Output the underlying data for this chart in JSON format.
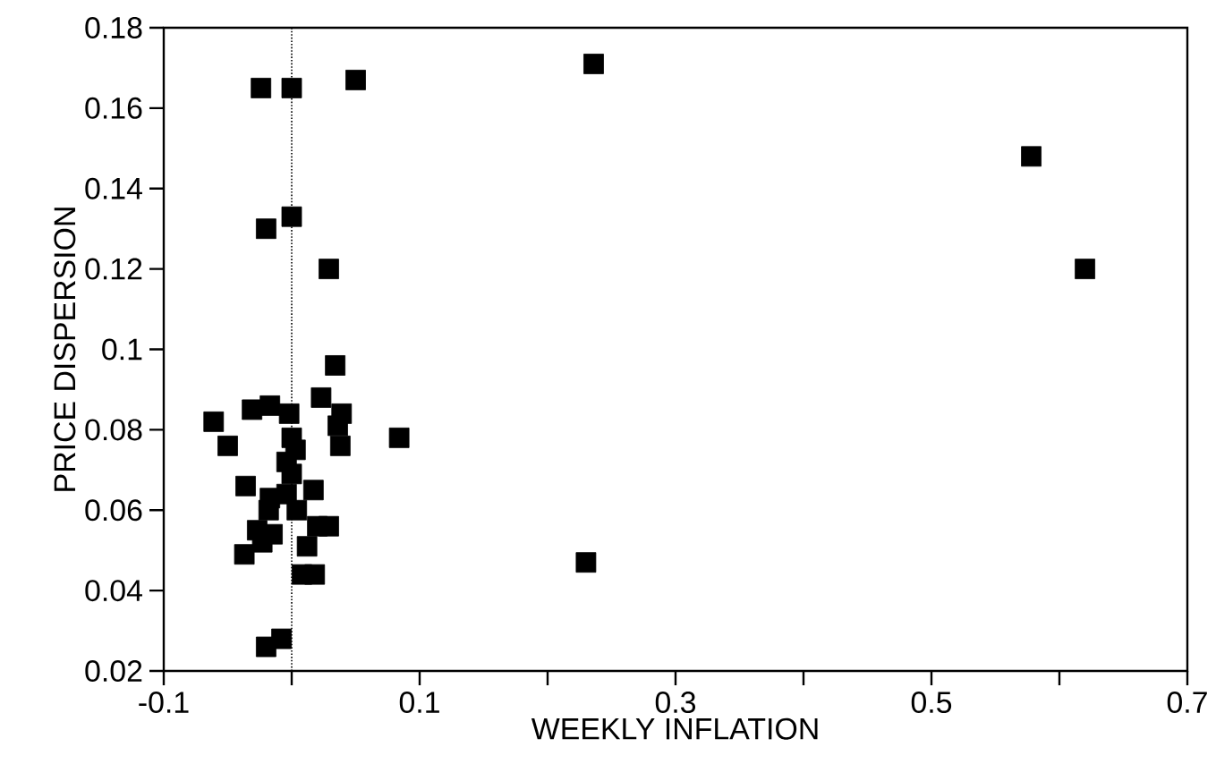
{
  "chart_data": {
    "type": "scatter",
    "xlabel": "WEEKLY INFLATION",
    "ylabel": "PRICE DISPERSION",
    "x": [
      0.023,
      -0.031,
      -0.017,
      -0.002,
      -0.061,
      0.039,
      0.036,
      0.0,
      -0.05,
      0.038,
      0.084,
      0.003,
      -0.004,
      0.0,
      -0.036,
      0.017,
      -0.004,
      -0.017,
      -0.018,
      0.004,
      0.02,
      0.029,
      -0.027,
      -0.015,
      -0.023,
      -0.037,
      0.012,
      0.008,
      0.018,
      -0.008,
      -0.02,
      -0.024,
      0.0,
      0.05,
      0.236,
      0.0,
      -0.02,
      0.029,
      0.578,
      0.62,
      0.23,
      0.034
    ],
    "values": [
      0.088,
      0.085,
      0.086,
      0.084,
      0.082,
      0.084,
      0.081,
      0.078,
      0.076,
      0.076,
      0.078,
      0.075,
      0.072,
      0.069,
      0.066,
      0.065,
      0.064,
      0.063,
      0.06,
      0.06,
      0.056,
      0.056,
      0.055,
      0.054,
      0.052,
      0.049,
      0.051,
      0.044,
      0.044,
      0.028,
      0.026,
      0.165,
      0.165,
      0.167,
      0.171,
      0.133,
      0.13,
      0.12,
      0.148,
      0.12,
      0.047,
      0.096
    ],
    "color": "#000000",
    "marker": "square",
    "xlim": [
      -0.1,
      0.7
    ],
    "ylim": [
      0.02,
      0.18
    ],
    "xticks": [
      -0.1,
      {
        "value": 0,
        "label": null
      },
      0.1,
      {
        "value": 0.2,
        "label": null
      },
      0.3,
      {
        "value": 0.4,
        "label": null
      },
      0.5,
      {
        "value": 0.6,
        "label": null
      },
      0.7
    ],
    "yticks": [
      0.02,
      0.04,
      0.06,
      0.08,
      0.1,
      0.12,
      0.14,
      0.16,
      0.18
    ],
    "ref_lines": [
      {
        "axis": "x",
        "value": 0,
        "line_style": "dotted"
      }
    ]
  }
}
